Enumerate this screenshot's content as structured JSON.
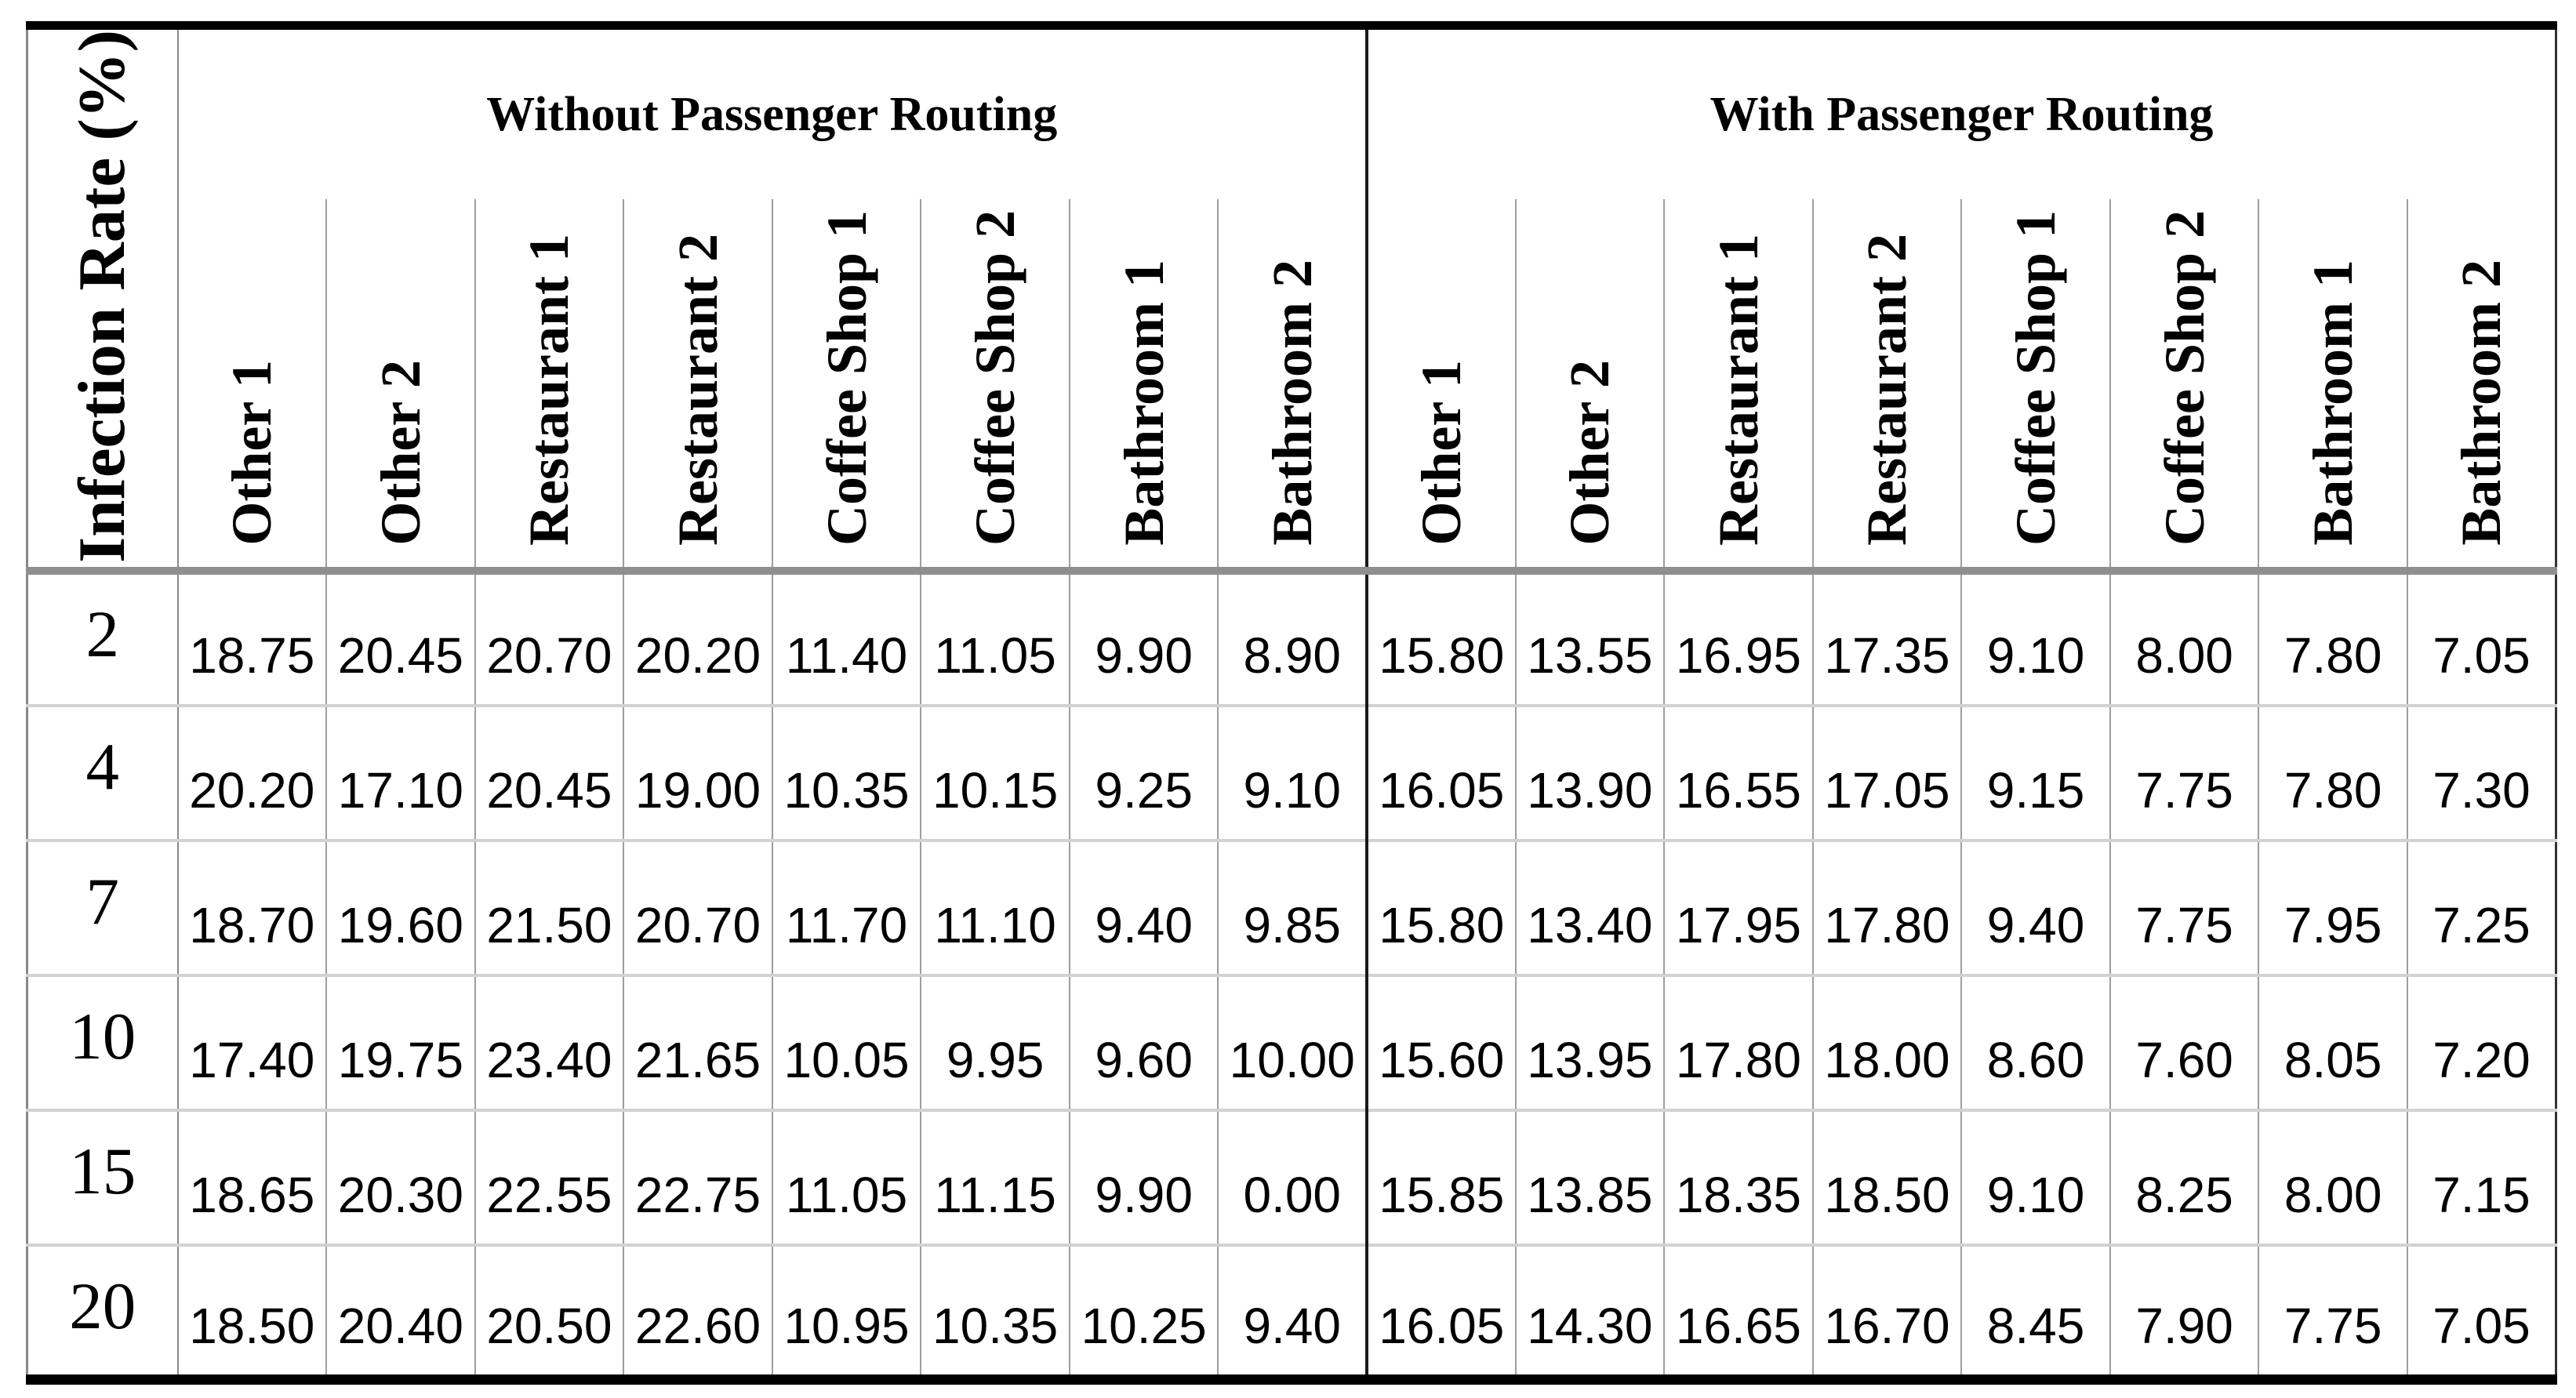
{
  "chart_data": {
    "type": "table",
    "title": "",
    "row_header_label": "Infection Rate (%)",
    "column_groups": [
      {
        "label": "Without Passenger Routing",
        "columns": [
          "Other 1",
          "Other 2",
          "Restaurant 1",
          "Restaurant 2",
          "Coffee Shop 1",
          "Coffee Shop 2",
          "Bathroom 1",
          "Bathroom 2"
        ]
      },
      {
        "label": "With Passenger Routing",
        "columns": [
          "Other 1",
          "Other 2",
          "Restaurant 1",
          "Restaurant 2",
          "Coffee Shop 1",
          "Coffee Shop 2",
          "Bathroom 1",
          "Bathroom 2"
        ]
      }
    ],
    "rows": [
      {
        "infection_rate": 2,
        "without_passenger_routing": [
          18.75,
          20.45,
          20.7,
          20.2,
          11.4,
          11.05,
          9.9,
          8.9
        ],
        "with_passenger_routing": [
          15.8,
          13.55,
          16.95,
          17.35,
          9.1,
          8.0,
          7.8,
          7.05
        ]
      },
      {
        "infection_rate": 4,
        "without_passenger_routing": [
          20.2,
          17.1,
          20.45,
          19.0,
          10.35,
          10.15,
          9.25,
          9.1
        ],
        "with_passenger_routing": [
          16.05,
          13.9,
          16.55,
          17.05,
          9.15,
          7.75,
          7.8,
          7.3
        ]
      },
      {
        "infection_rate": 7,
        "without_passenger_routing": [
          18.7,
          19.6,
          21.5,
          20.7,
          11.7,
          11.1,
          9.4,
          9.85
        ],
        "with_passenger_routing": [
          15.8,
          13.4,
          17.95,
          17.8,
          9.4,
          7.75,
          7.95,
          7.25
        ]
      },
      {
        "infection_rate": 10,
        "without_passenger_routing": [
          17.4,
          19.75,
          23.4,
          21.65,
          10.05,
          9.95,
          9.6,
          10.0
        ],
        "with_passenger_routing": [
          15.6,
          13.95,
          17.8,
          18.0,
          8.6,
          7.6,
          8.05,
          7.2
        ]
      },
      {
        "infection_rate": 15,
        "without_passenger_routing": [
          18.65,
          20.3,
          22.55,
          22.75,
          11.05,
          11.15,
          9.9,
          0.0
        ],
        "with_passenger_routing": [
          15.85,
          13.85,
          18.35,
          18.5,
          9.1,
          8.25,
          8.0,
          7.15
        ]
      },
      {
        "infection_rate": 20,
        "without_passenger_routing": [
          18.5,
          20.4,
          20.5,
          22.6,
          10.95,
          10.35,
          10.25,
          9.4
        ],
        "with_passenger_routing": [
          16.05,
          14.3,
          16.65,
          16.7,
          8.45,
          7.9,
          7.75,
          7.05
        ]
      }
    ],
    "value_decimals": 2,
    "layout": {
      "grid": "on",
      "row_header_rotated": true,
      "column_headers_rotated": true
    },
    "colors": {
      "text": "#000000",
      "background": "#ffffff",
      "frame": "#000000",
      "group_divider": "#1a1a1a",
      "column_grid": "#9e9e9e",
      "row_grid": "#d2d2d2",
      "header_separator": "#8f8f8f"
    }
  }
}
